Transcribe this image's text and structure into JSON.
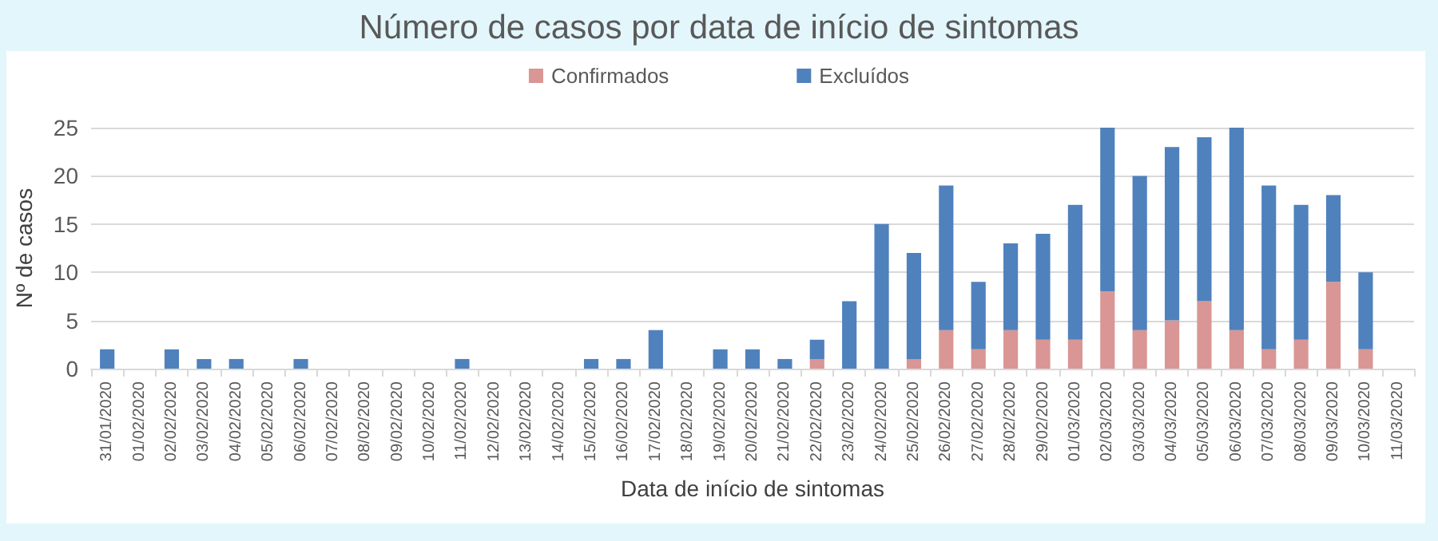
{
  "chart_data": {
    "type": "bar",
    "title": "Número de casos por data de início de sintomas",
    "xlabel": "Data de início de sintomas",
    "ylabel": "Nº de casos",
    "categories": [
      "31/01/2020",
      "01/02/2020",
      "02/02/2020",
      "03/02/2020",
      "04/02/2020",
      "05/02/2020",
      "06/02/2020",
      "07/02/2020",
      "08/02/2020",
      "09/02/2020",
      "10/02/2020",
      "11/02/2020",
      "12/02/2020",
      "13/02/2020",
      "14/02/2020",
      "15/02/2020",
      "16/02/2020",
      "17/02/2020",
      "18/02/2020",
      "19/02/2020",
      "20/02/2020",
      "21/02/2020",
      "22/02/2020",
      "23/02/2020",
      "24/02/2020",
      "25/02/2020",
      "26/02/2020",
      "27/02/2020",
      "28/02/2020",
      "29/02/2020",
      "01/03/2020",
      "02/03/2020",
      "03/03/2020",
      "04/03/2020",
      "05/03/2020",
      "06/03/2020",
      "07/03/2020",
      "08/03/2020",
      "09/03/2020",
      "10/03/2020",
      "11/03/2020"
    ],
    "series": [
      {
        "name": "Confirmados",
        "color": "#d99694",
        "values": [
          0,
          0,
          0,
          0,
          0,
          0,
          0,
          0,
          0,
          0,
          0,
          0,
          0,
          0,
          0,
          0,
          0,
          0,
          0,
          0,
          0,
          0,
          1,
          0,
          0,
          1,
          4,
          2,
          4,
          3,
          3,
          8,
          4,
          5,
          7,
          4,
          2,
          3,
          9,
          2,
          0
        ]
      },
      {
        "name": "Excluídos",
        "color": "#4f81bd",
        "values": [
          2,
          0,
          2,
          1,
          1,
          0,
          1,
          0,
          0,
          0,
          0,
          1,
          0,
          0,
          0,
          1,
          1,
          4,
          0,
          2,
          2,
          1,
          2,
          7,
          15,
          11,
          15,
          7,
          9,
          11,
          14,
          17,
          16,
          18,
          17,
          21,
          17,
          14,
          9,
          8,
          0
        ]
      }
    ],
    "stacked": true,
    "ylim": [
      0,
      25
    ],
    "yticks": [
      0,
      5,
      10,
      15,
      20,
      25
    ],
    "grid": "y",
    "legend": "top"
  }
}
